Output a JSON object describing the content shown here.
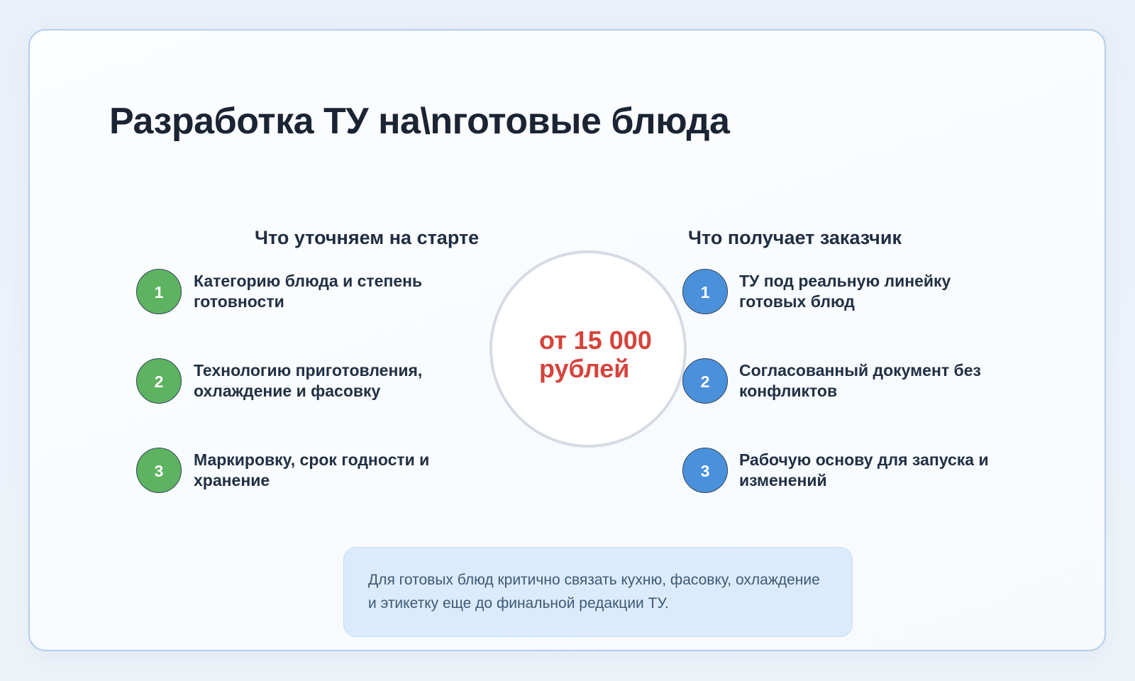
{
  "slide": {
    "title": "Разработка ТУ на\\nготовые блюда",
    "price": "от 15 000 рублей",
    "note": "Для готовых блюд критично связать кухню, фасовку, охлаждение и этикетку еще до финальной редакции ТУ.",
    "columns": {
      "left": {
        "header": "Что уточняем на старте",
        "items": [
          {
            "num": "1",
            "text": "Категорию блюда и степень готовности"
          },
          {
            "num": "2",
            "text": "Технологию приготовления, охлаждение и фасовку"
          },
          {
            "num": "3",
            "text": "Маркировку, срок годности и хранение"
          }
        ]
      },
      "right": {
        "header": "Что получает заказчик",
        "items": [
          {
            "num": "1",
            "text": "ТУ под реальную линейку готовых блюд"
          },
          {
            "num": "2",
            "text": "Согласованный документ без конфликтов"
          },
          {
            "num": "3",
            "text": "Рабочую основу для запуска и изменений"
          }
        ]
      }
    },
    "colors": {
      "accent_green": "#5db35f",
      "accent_blue": "#4b90da",
      "price_red": "#d5443d",
      "text_navy": "#213044",
      "card_border": "#b5ceec",
      "note_bg": "#dcebfb",
      "note_text": "#3c5977",
      "price_circle_border": "#d6dae4"
    }
  }
}
